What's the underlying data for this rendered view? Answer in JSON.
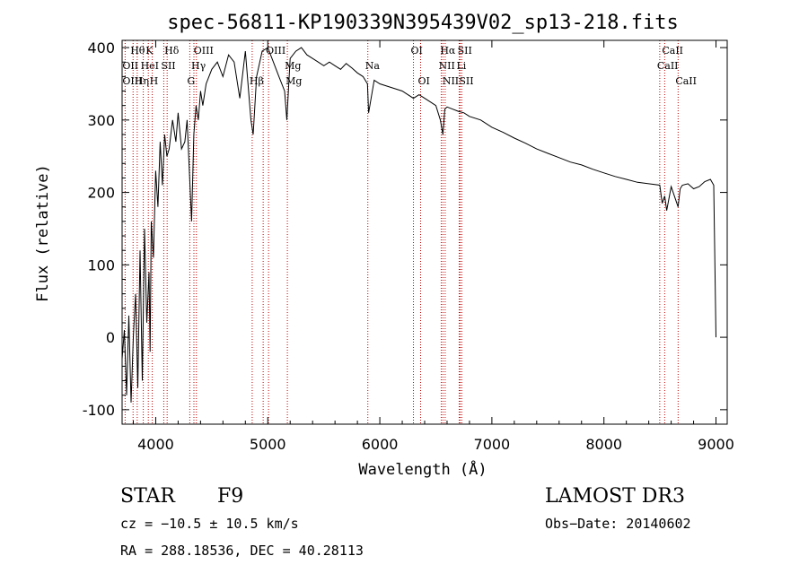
{
  "chart_data": {
    "type": "line",
    "title": "spec-56811-KP190339N395439V02_sp13-218.fits",
    "xlabel": "Wavelength (Å)",
    "ylabel": "Flux (relative)",
    "xlim": [
      3700,
      9100
    ],
    "ylim": [
      -120,
      410
    ],
    "xticks": [
      4000,
      5000,
      6000,
      7000,
      8000,
      9000
    ],
    "yticks": [
      -100,
      0,
      100,
      200,
      300,
      400
    ],
    "grid": false,
    "series": [
      {
        "x": [
          3700,
          3720,
          3740,
          3760,
          3780,
          3800,
          3820,
          3840,
          3860,
          3880,
          3900,
          3920,
          3940,
          3950,
          3960,
          3980,
          4000,
          4020,
          4040,
          4060,
          4080,
          4100,
          4120,
          4150,
          4180,
          4200,
          4230,
          4260,
          4280,
          4300,
          4320,
          4340,
          4360,
          4380,
          4400,
          4420,
          4450,
          4500,
          4550,
          4600,
          4650,
          4700,
          4750,
          4800,
          4850,
          4870,
          4900,
          4950,
          5000,
          5050,
          5100,
          5150,
          5170,
          5200,
          5250,
          5300,
          5350,
          5400,
          5450,
          5500,
          5550,
          5600,
          5650,
          5700,
          5750,
          5800,
          5850,
          5890,
          5900,
          5950,
          6000,
          6100,
          6200,
          6300,
          6350,
          6400,
          6450,
          6500,
          6540,
          6563,
          6580,
          6600,
          6650,
          6700,
          6750,
          6800,
          6900,
          7000,
          7100,
          7200,
          7300,
          7400,
          7500,
          7600,
          7700,
          7800,
          7900,
          8000,
          8100,
          8200,
          8300,
          8400,
          8498,
          8520,
          8542,
          8560,
          8600,
          8662,
          8680,
          8700,
          8750,
          8800,
          8850,
          8900,
          8950,
          8980,
          9000
        ],
        "y": [
          -30,
          10,
          -80,
          30,
          -90,
          0,
          60,
          -70,
          120,
          -60,
          150,
          20,
          90,
          -20,
          160,
          110,
          230,
          180,
          270,
          210,
          280,
          250,
          260,
          300,
          270,
          310,
          260,
          270,
          300,
          230,
          160,
          280,
          320,
          300,
          340,
          320,
          350,
          370,
          380,
          360,
          390,
          380,
          330,
          395,
          300,
          280,
          360,
          395,
          400,
          380,
          360,
          340,
          300,
          385,
          395,
          400,
          390,
          385,
          380,
          375,
          380,
          375,
          370,
          378,
          372,
          365,
          360,
          350,
          310,
          355,
          350,
          345,
          340,
          330,
          335,
          330,
          325,
          320,
          300,
          280,
          315,
          318,
          315,
          312,
          310,
          305,
          300,
          290,
          283,
          275,
          268,
          260,
          254,
          248,
          242,
          238,
          232,
          227,
          222,
          218,
          214,
          212,
          210,
          185,
          195,
          175,
          208,
          180,
          205,
          210,
          212,
          205,
          208,
          215,
          218,
          210,
          0
        ]
      }
    ],
    "lines": {
      "top_row": [
        {
          "label": "Hθ",
          "x": 3798
        },
        {
          "label": "K",
          "x": 3934
        },
        {
          "label": "Hδ",
          "x": 4102
        },
        {
          "label": "OIII",
          "x": 4363
        },
        {
          "label": "OIII",
          "x": 5007
        },
        {
          "label": "OI",
          "x": 6300
        },
        {
          "label": "Hα",
          "x": 6563
        },
        {
          "label": "SII",
          "x": 6717
        },
        {
          "label": "CaII",
          "x": 8542
        }
      ],
      "mid_row": [
        {
          "label": "OII",
          "x": 3727
        },
        {
          "label": "HeI",
          "x": 3889
        },
        {
          "label": "SII",
          "x": 4072
        },
        {
          "label": "Hγ",
          "x": 4341
        },
        {
          "label": "Mg",
          "x": 5175
        },
        {
          "label": "Na",
          "x": 5893
        },
        {
          "label": "NII",
          "x": 6548
        },
        {
          "label": "Li",
          "x": 6708
        },
        {
          "label": "CaII",
          "x": 8498
        }
      ],
      "bot_row": [
        {
          "label": "OIII",
          "x": 3727
        },
        {
          "label": "Hη",
          "x": 3835
        },
        {
          "label": "H",
          "x": 3969
        },
        {
          "label": "G",
          "x": 4304
        },
        {
          "label": "Hβ",
          "x": 4861
        },
        {
          "label": "Mg",
          "x": 5183
        },
        {
          "label": "OI",
          "x": 6364
        },
        {
          "label": "NII",
          "x": 6583
        },
        {
          "label": "SII",
          "x": 6731
        },
        {
          "label": "CaII",
          "x": 8662
        }
      ],
      "marker_x": [
        3727,
        3798,
        3835,
        3889,
        3934,
        3969,
        4072,
        4102,
        4304,
        4341,
        4363,
        4861,
        4959,
        5007,
        5175,
        5893,
        6300,
        6364,
        6548,
        6563,
        6583,
        6708,
        6717,
        6731,
        8498,
        8542,
        8662
      ]
    }
  },
  "info": {
    "class": "STAR",
    "subclass": "F9",
    "survey": "LAMOST DR3",
    "cz": "cz = −10.5 ± 10.5 km/s",
    "obs_date": "Obs−Date: 20140602",
    "radec": "RA = 288.18536, DEC =  40.28113"
  }
}
